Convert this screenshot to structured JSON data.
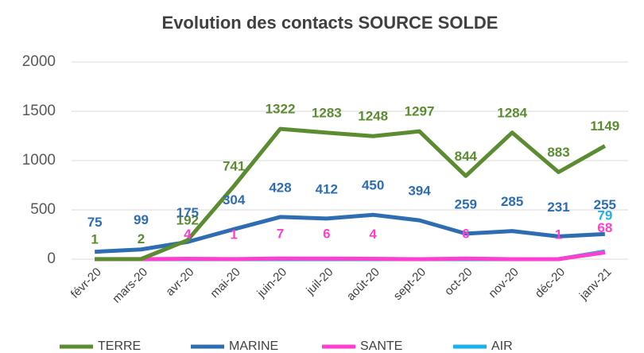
{
  "chart_data": {
    "type": "line",
    "title": "Evolution des contacts SOURCE SOLDE",
    "categories": [
      "févr-20",
      "mars-20",
      "avr-20",
      "mai-20",
      "juin-20",
      "juil-20",
      "août-20",
      "sept-20",
      "oct-20",
      "nov-20",
      "déc-20",
      "janv-21"
    ],
    "series": [
      {
        "name": "TERRE",
        "color": "#5b8c32",
        "values": [
          1,
          2,
          192,
          741,
          1322,
          1283,
          1248,
          1297,
          844,
          1284,
          883,
          1149
        ]
      },
      {
        "name": "MARINE",
        "color": "#2f6db3",
        "values": [
          75,
          99,
          175,
          304,
          428,
          412,
          450,
          394,
          259,
          285,
          231,
          255
        ]
      },
      {
        "name": "SANTE",
        "color": "#ff3fcf",
        "values": [
          0,
          0,
          4,
          1,
          7,
          6,
          4,
          0,
          6,
          0,
          1,
          68
        ],
        "value_labels": [
          null,
          null,
          "4",
          "1",
          "7",
          "6",
          "4",
          null,
          "6",
          null,
          "1",
          "68"
        ]
      },
      {
        "name": "AIR",
        "color": "#1ab2ea",
        "values": [
          0,
          0,
          0,
          0,
          0,
          0,
          0,
          0,
          0,
          0,
          0,
          79
        ],
        "value_labels": [
          null,
          null,
          null,
          null,
          null,
          null,
          null,
          null,
          null,
          null,
          null,
          "79"
        ]
      }
    ],
    "ylim": [
      0,
      2000
    ],
    "yticks": [
      0,
      500,
      1000,
      1500,
      2000
    ],
    "grid": true,
    "legend": "bottom"
  }
}
